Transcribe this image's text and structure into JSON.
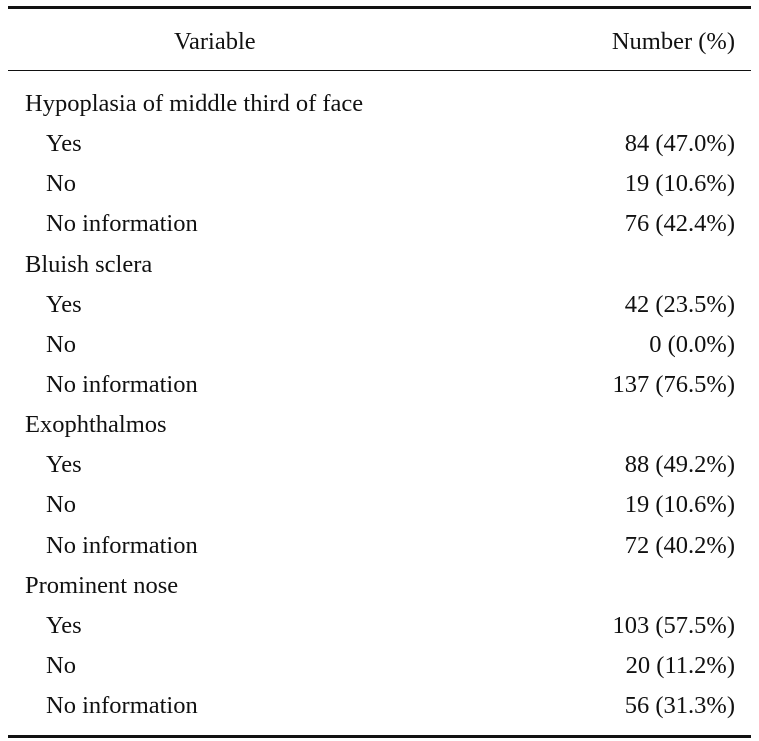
{
  "header": {
    "variable": "Variable",
    "number": "Number (%)"
  },
  "groups": [
    {
      "label": "Hypoplasia of middle third of face",
      "rows": [
        {
          "label": "Yes",
          "value": "84 (47.0%)"
        },
        {
          "label": "No",
          "value": "19 (10.6%)"
        },
        {
          "label": "No information",
          "value": "76 (42.4%)"
        }
      ]
    },
    {
      "label": "Bluish sclera",
      "rows": [
        {
          "label": "Yes",
          "value": "42 (23.5%)"
        },
        {
          "label": "No",
          "value": "0 (0.0%)"
        },
        {
          "label": "No information",
          "value": "137 (76.5%)"
        }
      ]
    },
    {
      "label": "Exophthalmos",
      "rows": [
        {
          "label": "Yes",
          "value": "88 (49.2%)"
        },
        {
          "label": "No",
          "value": "19 (10.6%)"
        },
        {
          "label": "No information",
          "value": "72 (40.2%)"
        }
      ]
    },
    {
      "label": "Prominent nose",
      "rows": [
        {
          "label": "Yes",
          "value": "103 (57.5%)"
        },
        {
          "label": "No",
          "value": "20 (11.2%)"
        },
        {
          "label": "No information",
          "value": "56 (31.3%)"
        }
      ]
    }
  ]
}
